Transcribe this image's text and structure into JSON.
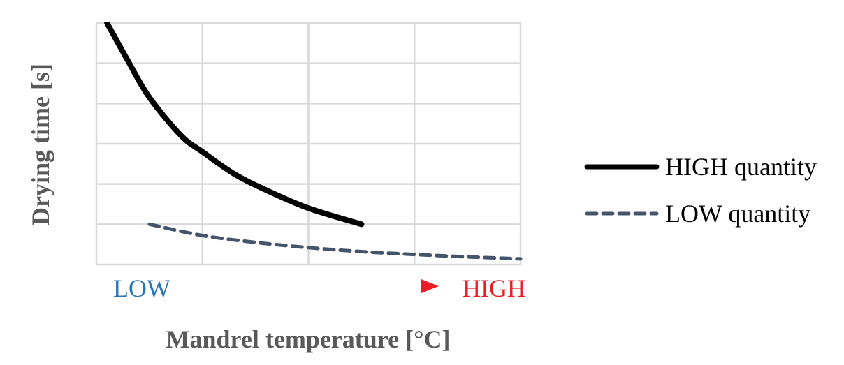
{
  "chart_data": {
    "type": "line",
    "title": "",
    "xlabel": "Mandrel temperature [°C]",
    "ylabel": "Drying time [s]",
    "x_scale_labels": {
      "low": "LOW",
      "high": "HIGH"
    },
    "xlim": [
      0,
      4
    ],
    "ylim": [
      0,
      6
    ],
    "grid": true,
    "legend_position": "right",
    "series": [
      {
        "name": "HIGH quantity",
        "style": "solid",
        "color": "#000000",
        "x": [
          0.1,
          0.3,
          0.5,
          0.8,
          1.0,
          1.3,
          1.6,
          2.0,
          2.5
        ],
        "y": [
          6.0,
          5.05,
          4.15,
          3.2,
          2.8,
          2.25,
          1.85,
          1.4,
          1.0
        ]
      },
      {
        "name": "LOW quantity",
        "style": "dashed",
        "color": "#44546A",
        "x": [
          0.5,
          1.0,
          1.5,
          2.0,
          2.5,
          3.0,
          3.5,
          4.0
        ],
        "y": [
          1.0,
          0.72,
          0.55,
          0.42,
          0.32,
          0.25,
          0.19,
          0.14
        ]
      }
    ]
  },
  "colors": {
    "grid": "#D9D9D9",
    "low_label": "#2E75B6",
    "high_label": "#ED1C24",
    "arrow_start": "#2E75B6",
    "arrow_end": "#ED1C24",
    "axis_title": "#595959"
  }
}
